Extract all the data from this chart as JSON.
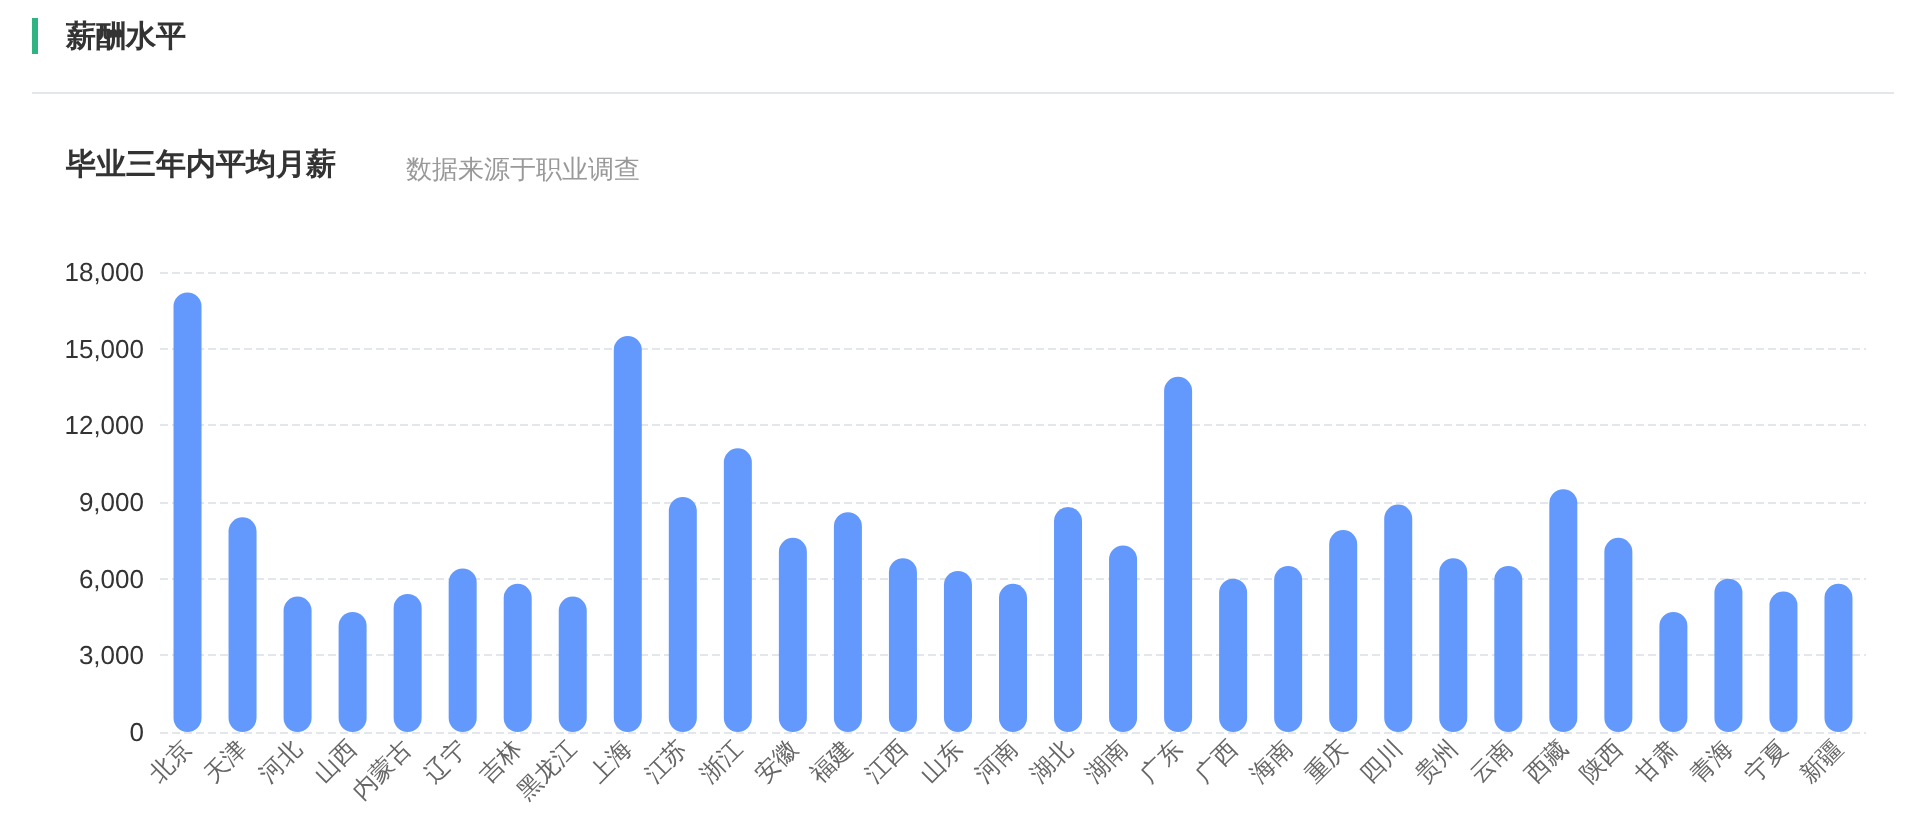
{
  "chart_data": {
    "type": "bar",
    "title": "毕业三年内平均月薪",
    "subtitle": "数据来源于职业调查",
    "annotations": [
      "薪酬水平"
    ],
    "categories": [
      "北京",
      "天津",
      "河北",
      "山西",
      "内蒙古",
      "辽宁",
      "吉林",
      "黑龙江",
      "上海",
      "江苏",
      "浙江",
      "安徽",
      "福建",
      "江西",
      "山东",
      "河南",
      "湖北",
      "湖南",
      "广东",
      "广西",
      "海南",
      "重庆",
      "四川",
      "贵州",
      "云南",
      "西藏",
      "陕西",
      "甘肃",
      "青海",
      "宁夏",
      "新疆"
    ],
    "values": [
      17200,
      8400,
      5300,
      4700,
      5400,
      6400,
      5800,
      5300,
      15500,
      9200,
      11100,
      7600,
      8600,
      6800,
      6300,
      5800,
      8800,
      7300,
      13900,
      6000,
      6500,
      7900,
      8900,
      6800,
      6500,
      9500,
      7600,
      4700,
      6000,
      5500,
      5800
    ],
    "color": "#6399fc",
    "ylim": [
      0,
      18000
    ],
    "yticks": [
      0,
      {
        "value": 3000,
        "label": "3,000"
      },
      {
        "value": 6000,
        "label": "6,000"
      },
      {
        "value": 9000,
        "label": "9,000"
      },
      {
        "value": 12000,
        "label": "12,000"
      },
      {
        "value": 15000,
        "label": "15,000"
      },
      {
        "value": 18000,
        "label": "18,000"
      }
    ],
    "grid": "y"
  }
}
